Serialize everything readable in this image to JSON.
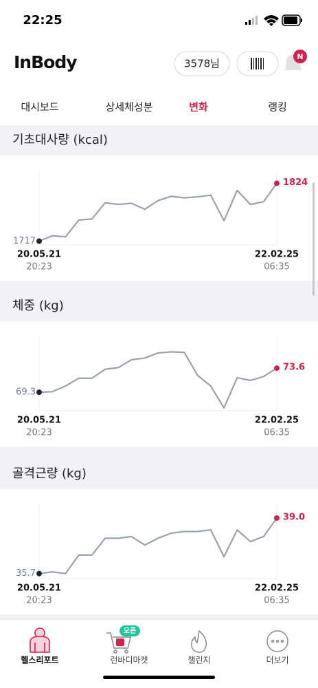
{
  "status_bar": {
    "time": "22:25"
  },
  "header": {
    "logo": "InBody",
    "user": "3578님",
    "notification_badge": "N"
  },
  "tabs": {
    "items": [
      "대시보드",
      "상세체성분",
      "변화",
      "랭킹"
    ],
    "active": 2
  },
  "chart_data": [
    {
      "type": "line",
      "title": "기초대사량 (kcal)",
      "categories": [
        "20.05.21",
        null,
        null,
        null,
        null,
        null,
        null,
        null,
        null,
        null,
        null,
        null,
        null,
        null,
        null,
        null,
        null,
        null,
        "22.02.25"
      ],
      "category_times": [
        "20:23",
        null,
        null,
        null,
        null,
        null,
        null,
        null,
        null,
        null,
        null,
        null,
        null,
        null,
        null,
        null,
        null,
        null,
        "06:35"
      ],
      "ylim": [
        1710,
        1850
      ],
      "series": [
        {
          "color": "#9aa0ae",
          "start_color": "#1f2430",
          "end_color": "#d4204a",
          "start_label_color": "#6b7a99",
          "values": [
            1717,
            1727,
            1725,
            1756,
            1758,
            1788,
            1785,
            1787,
            1776,
            1792,
            1800,
            1797,
            1799,
            1802,
            1755,
            1811,
            1785,
            1790,
            1824
          ],
          "value_labels": [
            "1717",
            null,
            null,
            null,
            null,
            null,
            null,
            null,
            null,
            null,
            null,
            null,
            null,
            null,
            null,
            null,
            null,
            null,
            "1824"
          ]
        }
      ]
    },
    {
      "type": "line",
      "title": "체중 (kg)",
      "categories": [
        "20.05.21",
        null,
        null,
        null,
        null,
        null,
        null,
        null,
        null,
        null,
        null,
        null,
        null,
        null,
        null,
        null,
        null,
        null,
        "22.02.25"
      ],
      "category_times": [
        "20:23",
        null,
        null,
        null,
        null,
        null,
        null,
        null,
        null,
        null,
        null,
        null,
        null,
        null,
        null,
        null,
        null,
        null,
        "06:35"
      ],
      "ylim": [
        66,
        79.5
      ],
      "series": [
        {
          "color": "#9aa0ae",
          "start_color": "#1f2430",
          "end_color": "#d4204a",
          "start_label_color": "#6b7a99",
          "values": [
            69.3,
            69.4,
            70.4,
            71.8,
            71.8,
            73.4,
            73.7,
            75.1,
            75.4,
            76.3,
            76.5,
            76.4,
            72.3,
            70.4,
            66.5,
            71.9,
            71.4,
            72.1,
            73.6
          ],
          "value_labels": [
            "69.3",
            null,
            null,
            null,
            null,
            null,
            null,
            null,
            null,
            null,
            null,
            null,
            null,
            null,
            null,
            null,
            null,
            null,
            "73.6"
          ]
        }
      ]
    },
    {
      "type": "line",
      "title": "골격근량 (kg)",
      "categories": [
        "20.05.21",
        null,
        null,
        null,
        null,
        null,
        null,
        null,
        null,
        null,
        null,
        null,
        null,
        null,
        null,
        null,
        null,
        null,
        "22.02.25"
      ],
      "category_times": [
        "20:23",
        null,
        null,
        null,
        null,
        null,
        null,
        null,
        null,
        null,
        null,
        null,
        null,
        null,
        null,
        null,
        null,
        null,
        "06:35"
      ],
      "ylim": [
        35.4,
        39.9
      ],
      "series": [
        {
          "color": "#9aa0ae",
          "start_color": "#1f2430",
          "end_color": "#d4204a",
          "start_label_color": "#6b7a99",
          "values": [
            35.7,
            35.8,
            35.7,
            36.8,
            36.8,
            37.8,
            37.8,
            37.9,
            37.4,
            37.8,
            38.1,
            38.2,
            38.2,
            38.3,
            36.7,
            38.3,
            37.6,
            37.9,
            39.0
          ],
          "value_labels": [
            "35.7",
            null,
            null,
            null,
            null,
            null,
            null,
            null,
            null,
            null,
            null,
            null,
            null,
            null,
            null,
            null,
            null,
            null,
            "39.0"
          ]
        }
      ]
    }
  ],
  "bottom_nav": {
    "items": [
      "헬스리포트",
      "런바디마켓",
      "챌린지",
      "더보기"
    ],
    "active": 0,
    "market_badge": "오픈"
  }
}
